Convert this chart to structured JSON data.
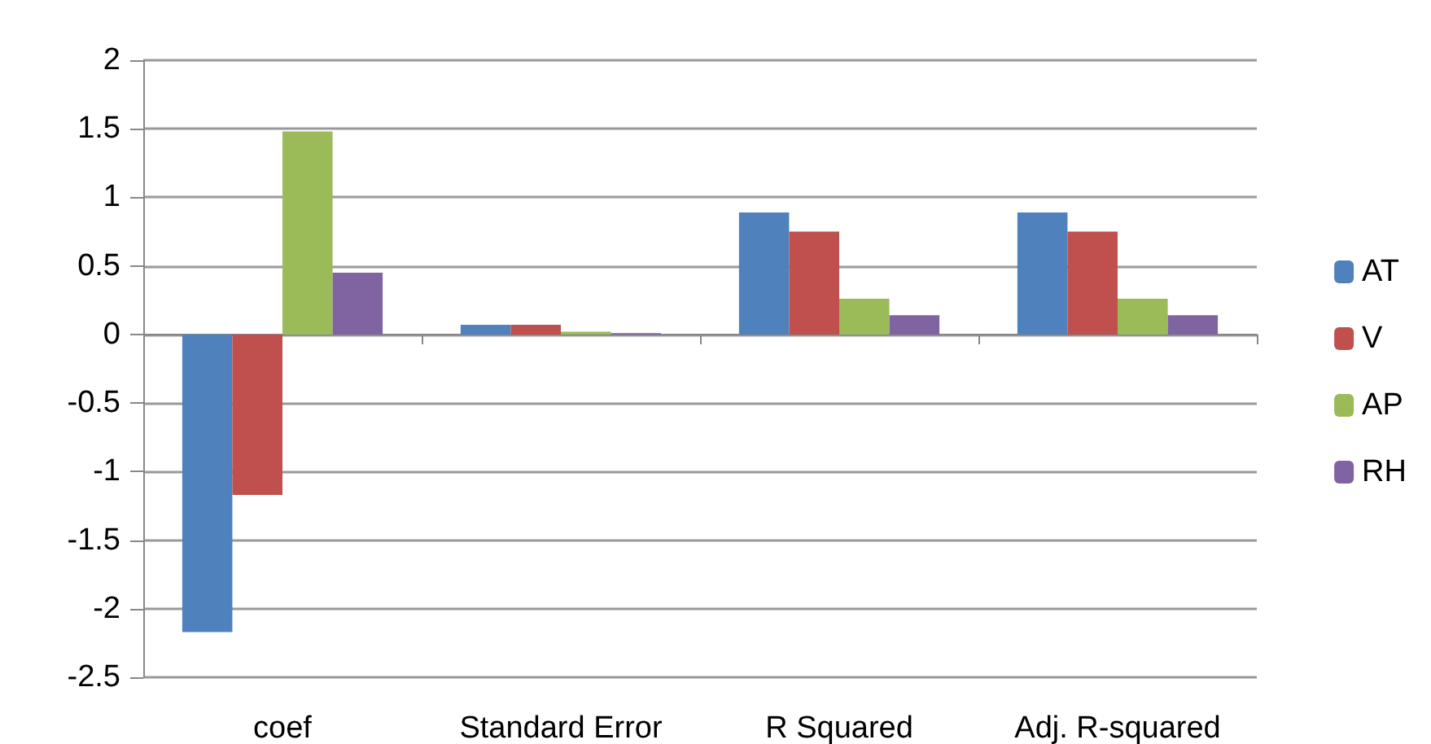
{
  "chart_data": {
    "type": "bar",
    "categories": [
      "coef",
      "Standard Error",
      "R Squared",
      "Adj. R-squared"
    ],
    "series": [
      {
        "name": "AT",
        "color": "#4f81bd",
        "values": [
          -2.17,
          0.07,
          0.89,
          0.89
        ]
      },
      {
        "name": "V",
        "color": "#c0504d",
        "values": [
          -1.17,
          0.07,
          0.75,
          0.75
        ]
      },
      {
        "name": "AP",
        "color": "#9bbb59",
        "values": [
          1.48,
          0.02,
          0.26,
          0.26
        ]
      },
      {
        "name": "RH",
        "color": "#8064a2",
        "values": [
          0.45,
          0.01,
          0.14,
          0.14
        ]
      }
    ],
    "ylim": [
      -2.5,
      2
    ],
    "yticks": [
      -2.5,
      -2,
      -1.5,
      -1,
      -0.5,
      0,
      0.5,
      1,
      1.5,
      2
    ],
    "grid": "y",
    "legend": "right"
  }
}
